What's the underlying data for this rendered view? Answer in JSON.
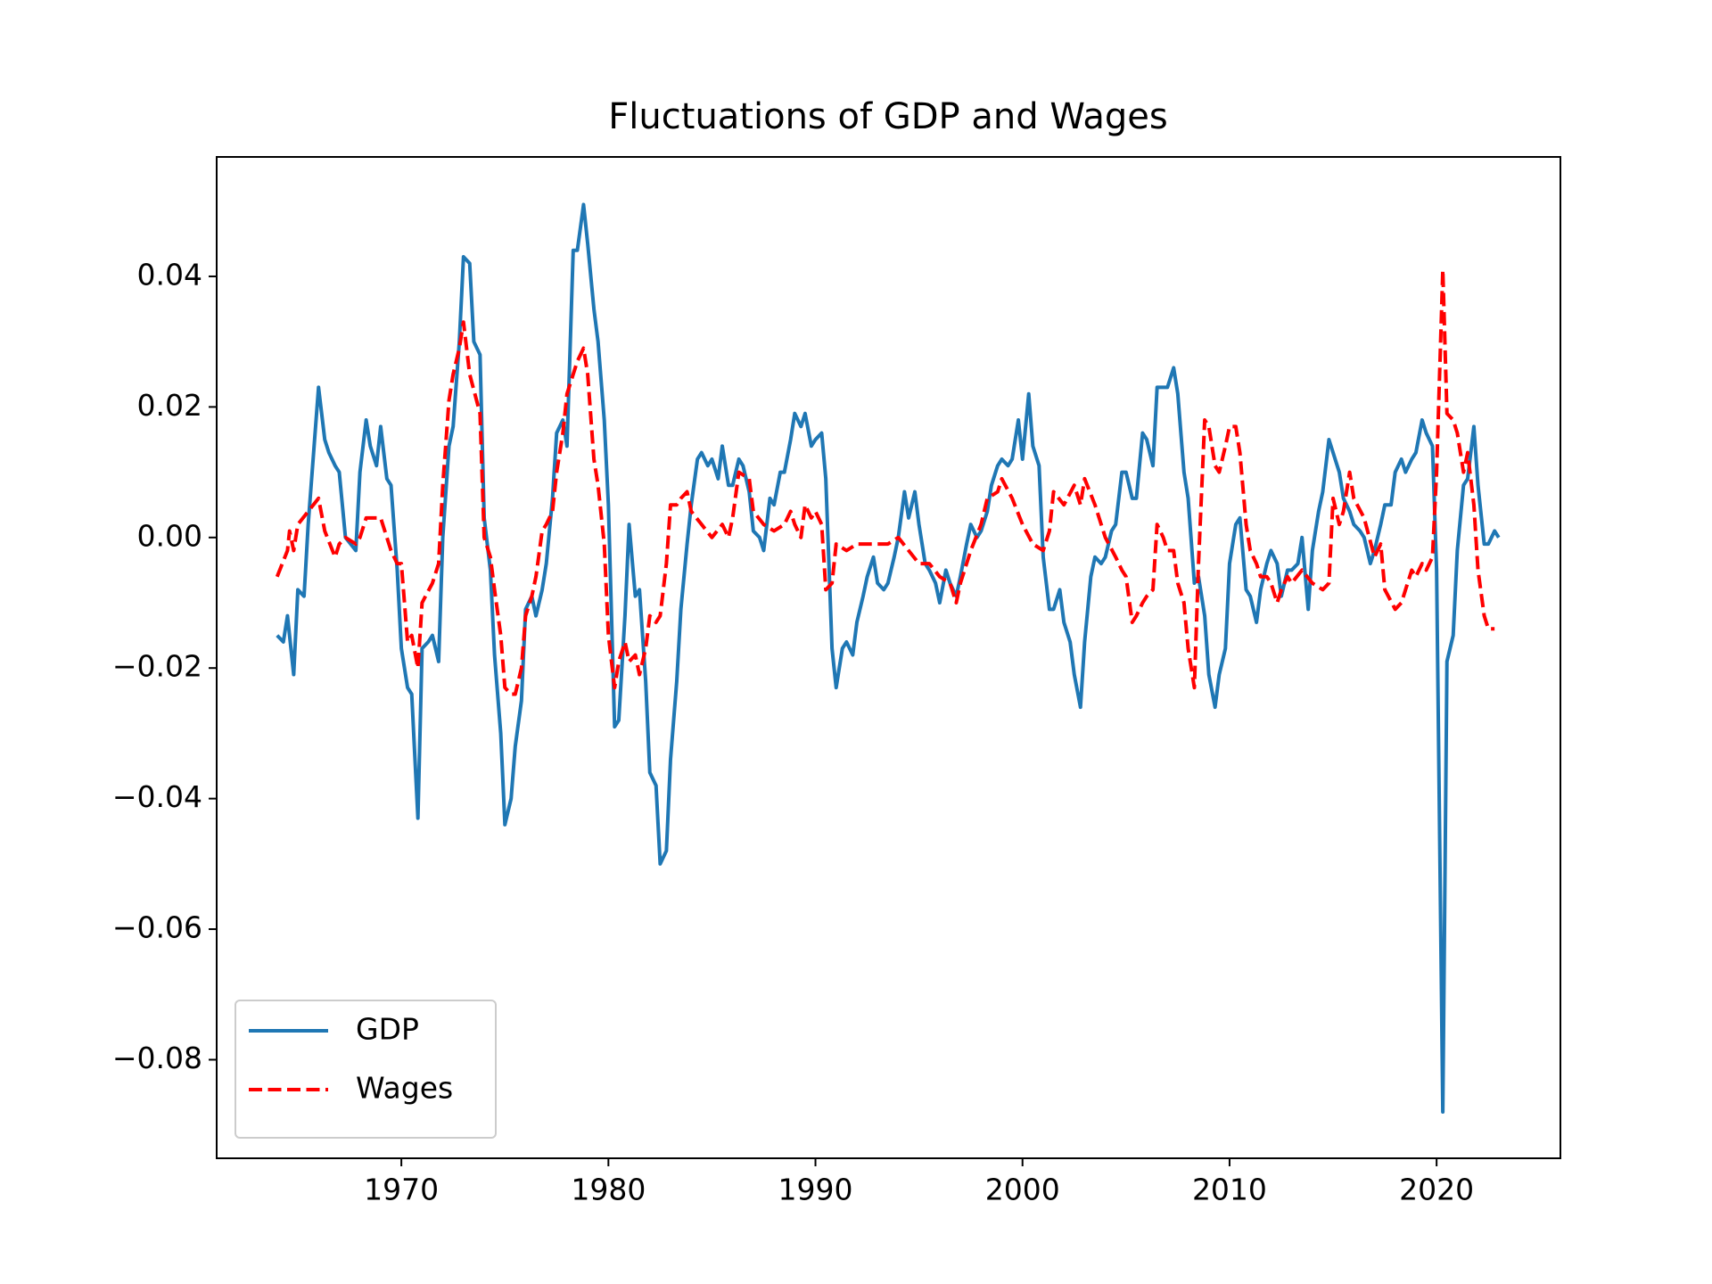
{
  "chart_data": {
    "type": "line",
    "title": "Fluctuations of GDP and Wages",
    "xlim": [
      1961.08,
      2025.98
    ],
    "xticks": [
      1970,
      1980,
      1990,
      2000,
      2010,
      2020
    ],
    "ylim": [
      -0.0951,
      0.0583
    ],
    "yticks": [
      {
        "value": -0.08,
        "label": "−0.08"
      },
      {
        "value": -0.06,
        "label": "−0.06"
      },
      {
        "value": -0.04,
        "label": "−0.04"
      },
      {
        "value": -0.02,
        "label": "−0.02"
      },
      {
        "value": 0,
        "label": "0.00"
      },
      0.02,
      0.04
    ],
    "legend": "lower left",
    "series": [
      {
        "name": "GDP",
        "color": "#1f77b4",
        "style": "solid",
        "x": [
          1964.0,
          1964.3,
          1964.5,
          1964.8,
          1965.0,
          1965.3,
          1965.5,
          1966.0,
          1966.3,
          1966.5,
          1966.8,
          1967.0,
          1967.3,
          1967.8,
          1968.0,
          1968.3,
          1968.5,
          1968.8,
          1969.0,
          1969.3,
          1969.5,
          1969.8,
          1970.0,
          1970.3,
          1970.5,
          1970.8,
          1971.0,
          1971.3,
          1971.5,
          1971.8,
          1972.0,
          1972.3,
          1972.5,
          1972.8,
          1973.0,
          1973.3,
          1973.5,
          1973.8,
          1974.0,
          1974.3,
          1974.5,
          1974.8,
          1975.0,
          1975.3,
          1975.5,
          1975.8,
          1976.0,
          1976.3,
          1976.5,
          1976.8,
          1977.0,
          1977.3,
          1977.5,
          1977.8,
          1978.0,
          1978.3,
          1978.5,
          1978.8,
          1979.0,
          1979.3,
          1979.5,
          1979.8,
          1980.0,
          1980.3,
          1980.5,
          1980.8,
          1981.0,
          1981.3,
          1981.5,
          1981.8,
          1982.0,
          1982.3,
          1982.5,
          1982.8,
          1983.0,
          1983.3,
          1983.5,
          1983.8,
          1984.0,
          1984.3,
          1984.5,
          1984.8,
          1985.0,
          1985.3,
          1985.5,
          1985.8,
          1986.0,
          1986.3,
          1986.5,
          1986.8,
          1987.0,
          1987.3,
          1987.5,
          1987.8,
          1988.0,
          1988.3,
          1988.5,
          1988.8,
          1989.0,
          1989.3,
          1989.5,
          1989.8,
          1990.0,
          1990.3,
          1990.5,
          1990.8,
          1991.0,
          1991.3,
          1991.5,
          1991.8,
          1992.0,
          1992.3,
          1992.5,
          1992.8,
          1993.0,
          1993.3,
          1993.5,
          1993.8,
          1994.0,
          1994.3,
          1994.5,
          1994.8,
          1995.0,
          1995.3,
          1995.5,
          1995.8,
          1996.0,
          1996.3,
          1996.5,
          1996.8,
          1997.0,
          1997.3,
          1997.5,
          1997.8,
          1998.0,
          1998.3,
          1998.5,
          1998.8,
          1999.0,
          1999.3,
          1999.5,
          1999.8,
          2000.0,
          2000.3,
          2000.5,
          2000.8,
          2001.0,
          2001.3,
          2001.5,
          2001.8,
          2002.0,
          2002.3,
          2002.5,
          2002.8,
          2003.0,
          2003.3,
          2003.5,
          2003.8,
          2004.0,
          2004.3,
          2004.5,
          2004.8,
          2005.0,
          2005.3,
          2005.5,
          2005.8,
          2006.0,
          2006.3,
          2006.5,
          2006.8,
          2007.0,
          2007.3,
          2007.5,
          2007.8,
          2008.0,
          2008.3,
          2008.5,
          2008.8,
          2009.0,
          2009.3,
          2009.5,
          2009.8,
          2010.0,
          2010.3,
          2010.5,
          2010.8,
          2011.0,
          2011.3,
          2011.5,
          2011.8,
          2012.0,
          2012.3,
          2012.5,
          2012.8,
          2013.0,
          2013.3,
          2013.5,
          2013.8,
          2014.0,
          2014.3,
          2014.5,
          2014.8,
          2015.0,
          2015.3,
          2015.5,
          2015.8,
          2016.0,
          2016.3,
          2016.5,
          2016.8,
          2017.0,
          2017.3,
          2017.5,
          2017.8,
          2018.0,
          2018.3,
          2018.5,
          2018.8,
          2019.0,
          2019.3,
          2019.5,
          2019.8,
          2020.0,
          2020.3,
          2020.5,
          2020.8,
          2021.0,
          2021.3,
          2021.5,
          2021.8,
          2022.0,
          2022.3,
          2022.5,
          2022.8,
          2023.0
        ],
        "values": [
          -0.015,
          -0.016,
          -0.012,
          -0.021,
          -0.008,
          -0.009,
          0.002,
          0.023,
          0.015,
          0.013,
          0.011,
          0.01,
          0.0,
          -0.002,
          0.01,
          0.018,
          0.014,
          0.011,
          0.017,
          0.009,
          0.008,
          -0.005,
          -0.017,
          -0.023,
          -0.024,
          -0.043,
          -0.017,
          -0.016,
          -0.015,
          -0.019,
          0.0,
          0.014,
          0.017,
          0.03,
          0.043,
          0.042,
          0.03,
          0.028,
          0.003,
          -0.005,
          -0.018,
          -0.03,
          -0.044,
          -0.04,
          -0.032,
          -0.025,
          -0.011,
          -0.009,
          -0.012,
          -0.008,
          -0.004,
          0.006,
          0.016,
          0.018,
          0.014,
          0.044,
          0.044,
          0.051,
          0.045,
          0.035,
          0.03,
          0.018,
          0.005,
          -0.029,
          -0.028,
          -0.012,
          0.002,
          -0.009,
          -0.008,
          -0.022,
          -0.036,
          -0.038,
          -0.05,
          -0.048,
          -0.034,
          -0.022,
          -0.011,
          -0.001,
          0.005,
          0.012,
          0.013,
          0.011,
          0.012,
          0.009,
          0.014,
          0.008,
          0.008,
          0.012,
          0.011,
          0.007,
          0.001,
          0.0,
          -0.002,
          0.006,
          0.005,
          0.01,
          0.01,
          0.015,
          0.019,
          0.017,
          0.019,
          0.014,
          0.015,
          0.016,
          0.009,
          -0.017,
          -0.023,
          -0.017,
          -0.016,
          -0.018,
          -0.013,
          -0.009,
          -0.006,
          -0.003,
          -0.007,
          -0.008,
          -0.007,
          -0.003,
          0.0,
          0.007,
          0.003,
          0.007,
          0.002,
          -0.004,
          -0.005,
          -0.007,
          -0.01,
          -0.005,
          -0.007,
          -0.009,
          -0.006,
          -0.001,
          0.002,
          0.0,
          0.001,
          0.004,
          0.008,
          0.011,
          0.012,
          0.011,
          0.012,
          0.018,
          0.012,
          0.022,
          0.014,
          0.011,
          -0.003,
          -0.011,
          -0.011,
          -0.008,
          -0.013,
          -0.016,
          -0.021,
          -0.026,
          -0.016,
          -0.006,
          -0.003,
          -0.004,
          -0.003,
          0.001,
          0.002,
          0.01,
          0.01,
          0.006,
          0.006,
          0.016,
          0.015,
          0.011,
          0.023,
          0.023,
          0.023,
          0.026,
          0.022,
          0.01,
          0.006,
          -0.007,
          -0.006,
          -0.012,
          -0.021,
          -0.026,
          -0.021,
          -0.017,
          -0.004,
          0.002,
          0.003,
          -0.008,
          -0.009,
          -0.013,
          -0.008,
          -0.004,
          -0.002,
          -0.004,
          -0.009,
          -0.005,
          -0.005,
          -0.004,
          0.0,
          -0.011,
          -0.002,
          0.004,
          0.007,
          0.015,
          0.013,
          0.01,
          0.006,
          0.004,
          0.002,
          0.001,
          0.0,
          -0.004,
          -0.002,
          0.002,
          0.005,
          0.005,
          0.01,
          0.012,
          0.01,
          0.012,
          0.013,
          0.018,
          0.016,
          0.014,
          -0.005,
          -0.088,
          -0.019,
          -0.015,
          -0.002,
          0.008,
          0.009,
          0.017,
          0.008,
          -0.001,
          -0.001,
          0.001,
          0.0
        ]
      },
      {
        "name": "Wages",
        "color": "#ff0000",
        "style": "dashed",
        "x": [
          1964.0,
          1964.5,
          1964.6,
          1964.8,
          1965.0,
          1965.5,
          1966.0,
          1966.3,
          1966.8,
          1967.0,
          1967.3,
          1967.8,
          1968.0,
          1968.3,
          1968.8,
          1969.0,
          1969.5,
          1969.8,
          1970.0,
          1970.3,
          1970.5,
          1970.8,
          1971.0,
          1971.5,
          1971.8,
          1972.0,
          1972.3,
          1972.5,
          1972.8,
          1973.0,
          1973.3,
          1973.8,
          1974.0,
          1974.3,
          1974.5,
          1974.8,
          1975.0,
          1975.3,
          1975.5,
          1975.8,
          1976.0,
          1976.3,
          1976.5,
          1976.8,
          1977.0,
          1977.3,
          1977.5,
          1977.8,
          1978.0,
          1978.3,
          1978.5,
          1978.8,
          1979.0,
          1979.3,
          1979.5,
          1979.8,
          1980.0,
          1980.3,
          1980.5,
          1980.8,
          1981.0,
          1981.3,
          1981.5,
          1981.8,
          1982.0,
          1982.3,
          1982.5,
          1982.8,
          1983.0,
          1983.3,
          1983.5,
          1983.8,
          1984.0,
          1984.5,
          1985.0,
          1985.5,
          1985.8,
          1986.0,
          1986.3,
          1986.8,
          1987.0,
          1987.5,
          1988.0,
          1988.5,
          1988.8,
          1989.0,
          1989.3,
          1989.5,
          1989.8,
          1990.0,
          1990.3,
          1990.5,
          1990.8,
          1991.0,
          1991.5,
          1992.0,
          1992.5,
          1993.0,
          1993.5,
          1994.0,
          1994.5,
          1995.0,
          1995.5,
          1996.0,
          1996.5,
          1996.8,
          1997.0,
          1997.5,
          1998.0,
          1998.3,
          1998.8,
          1999.0,
          1999.5,
          2000.0,
          2000.5,
          2001.0,
          2001.3,
          2001.5,
          2002.0,
          2002.5,
          2002.8,
          2003.0,
          2003.5,
          2004.0,
          2004.5,
          2004.8,
          2005.0,
          2005.3,
          2005.5,
          2005.8,
          2006.0,
          2006.3,
          2006.5,
          2006.8,
          2007.0,
          2007.3,
          2007.5,
          2007.8,
          2008.0,
          2008.3,
          2008.5,
          2008.8,
          2009.0,
          2009.3,
          2009.5,
          2009.8,
          2010.0,
          2010.3,
          2010.5,
          2010.8,
          2011.0,
          2011.3,
          2011.5,
          2011.8,
          2012.0,
          2012.3,
          2012.5,
          2012.8,
          2013.0,
          2013.5,
          2014.0,
          2014.5,
          2014.8,
          2015.0,
          2015.3,
          2015.5,
          2015.8,
          2016.0,
          2016.5,
          2017.0,
          2017.3,
          2017.5,
          2018.0,
          2018.3,
          2018.5,
          2018.8,
          2019.0,
          2019.3,
          2019.5,
          2019.8,
          2020.0,
          2020.3,
          2020.5,
          2020.8,
          2021.0,
          2021.3,
          2021.5,
          2021.8,
          2022.0,
          2022.3,
          2022.5,
          2022.8
        ],
        "values": [
          -0.006,
          -0.002,
          0.001,
          -0.002,
          0.002,
          0.004,
          0.006,
          0.001,
          -0.003,
          -0.001,
          0.0,
          -0.001,
          0.0,
          0.003,
          0.003,
          0.003,
          -0.002,
          -0.004,
          -0.004,
          -0.016,
          -0.015,
          -0.02,
          -0.01,
          -0.007,
          -0.004,
          0.008,
          0.021,
          0.025,
          0.029,
          0.033,
          0.025,
          0.019,
          0.0,
          -0.003,
          -0.008,
          -0.015,
          -0.023,
          -0.024,
          -0.024,
          -0.02,
          -0.012,
          -0.009,
          -0.006,
          0.001,
          0.002,
          0.004,
          0.01,
          0.016,
          0.022,
          0.025,
          0.027,
          0.029,
          0.025,
          0.012,
          0.008,
          -0.001,
          -0.015,
          -0.023,
          -0.019,
          -0.016,
          -0.019,
          -0.018,
          -0.021,
          -0.017,
          -0.012,
          -0.013,
          -0.012,
          -0.004,
          0.005,
          0.005,
          0.006,
          0.007,
          0.004,
          0.002,
          0.0,
          0.002,
          0.0,
          0.003,
          0.01,
          0.009,
          0.004,
          0.002,
          0.001,
          0.002,
          0.004,
          0.002,
          0.0,
          0.005,
          0.003,
          0.004,
          0.002,
          -0.008,
          -0.007,
          -0.001,
          -0.002,
          -0.001,
          -0.001,
          -0.001,
          -0.001,
          0.0,
          -0.002,
          -0.004,
          -0.004,
          -0.006,
          -0.007,
          -0.01,
          -0.007,
          -0.002,
          0.002,
          0.006,
          0.007,
          0.009,
          0.006,
          0.002,
          -0.001,
          -0.002,
          0.001,
          0.007,
          0.005,
          0.008,
          0.005,
          0.009,
          0.005,
          0.0,
          -0.003,
          -0.005,
          -0.006,
          -0.013,
          -0.012,
          -0.01,
          -0.009,
          -0.008,
          0.002,
          0.0,
          -0.002,
          -0.002,
          -0.007,
          -0.01,
          -0.017,
          -0.023,
          -0.004,
          0.018,
          0.017,
          0.011,
          0.01,
          0.014,
          0.017,
          0.017,
          0.013,
          0.002,
          -0.002,
          -0.004,
          -0.006,
          -0.006,
          -0.007,
          -0.01,
          -0.008,
          -0.006,
          -0.007,
          -0.005,
          -0.007,
          -0.008,
          -0.007,
          0.006,
          0.002,
          0.004,
          0.01,
          0.006,
          0.003,
          -0.003,
          -0.001,
          -0.008,
          -0.011,
          -0.01,
          -0.008,
          -0.005,
          -0.006,
          -0.004,
          -0.005,
          -0.003,
          0.01,
          0.041,
          0.019,
          0.018,
          0.016,
          0.01,
          0.013,
          0.005,
          -0.005,
          -0.012,
          -0.014,
          -0.014
        ]
      }
    ]
  }
}
